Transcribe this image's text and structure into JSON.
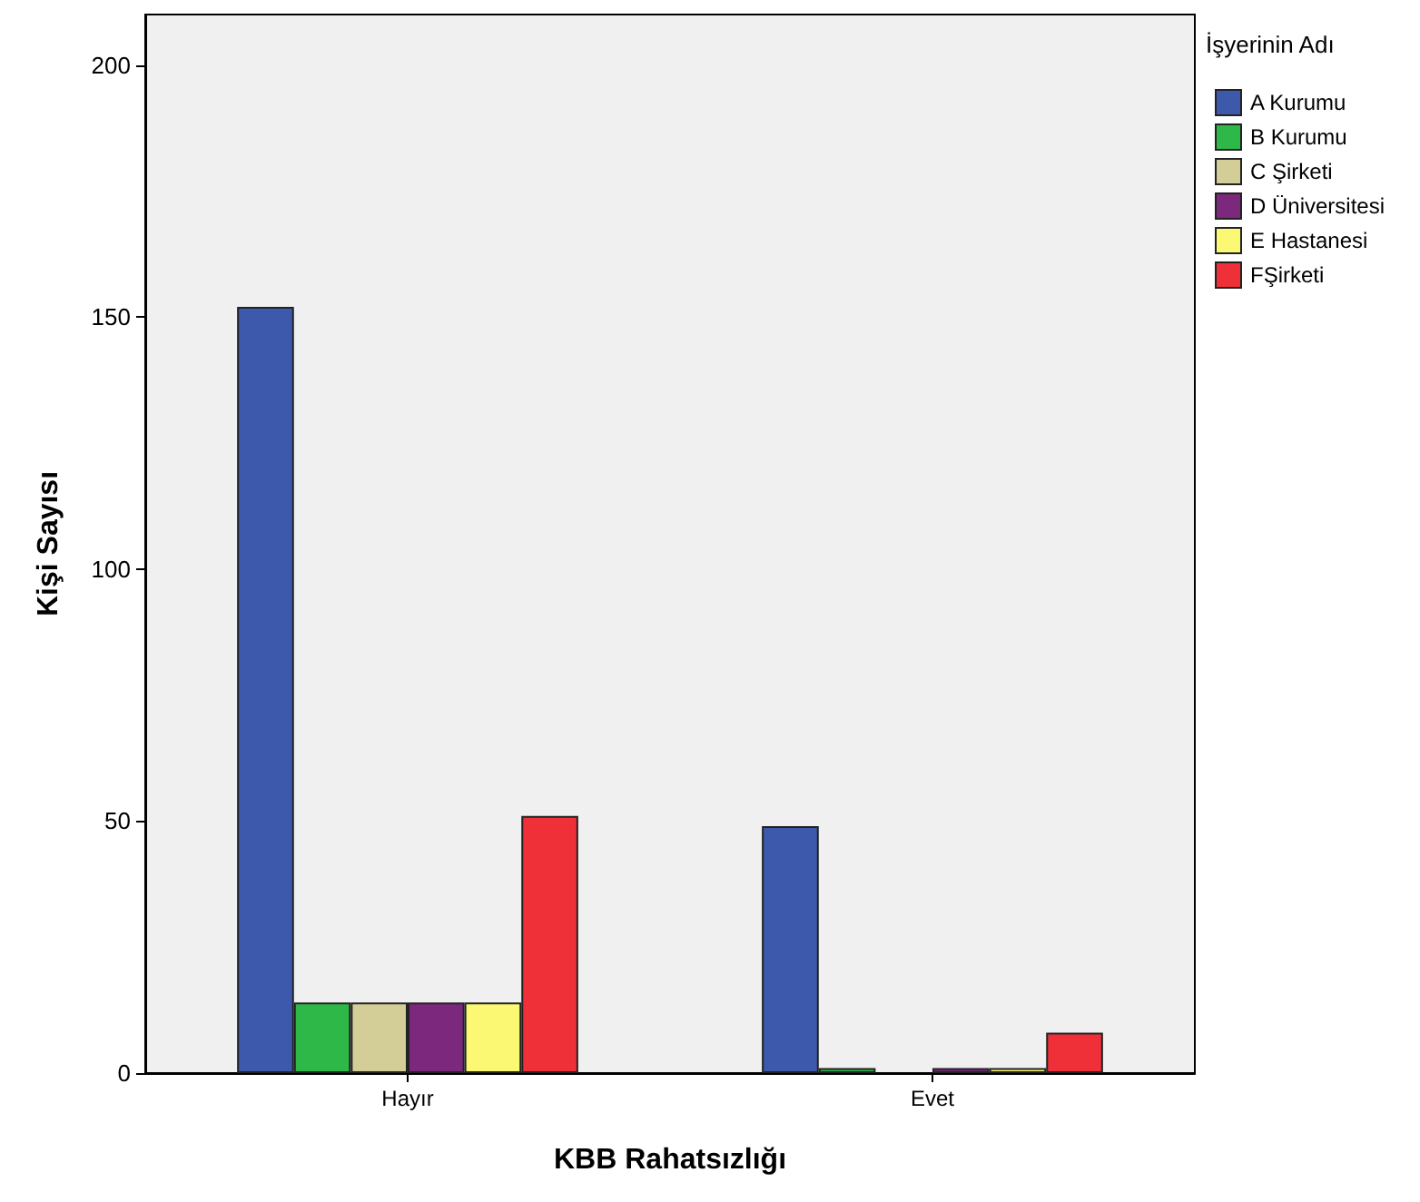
{
  "chart_data": {
    "type": "bar",
    "xlabel": "KBB Rahatsızlığı",
    "ylabel": "Kişi Sayısı",
    "legend_title": "İşyerinin Adı",
    "categories": [
      "Hayır",
      "Evet"
    ],
    "series": [
      {
        "name": "A Kurumu",
        "color": "#3d59ab",
        "values": [
          152,
          49
        ]
      },
      {
        "name": "B Kurumu",
        "color": "#2eb848",
        "values": [
          14,
          1
        ]
      },
      {
        "name": "C Şirketi",
        "color": "#d3ce97",
        "values": [
          14,
          0
        ]
      },
      {
        "name": "D Üniversitesi",
        "color": "#7b287d",
        "values": [
          14,
          1
        ]
      },
      {
        "name": "E Hastanesi",
        "color": "#fbf873",
        "values": [
          14,
          1
        ]
      },
      {
        "name": "FŞirketi",
        "color": "#ef3038",
        "values": [
          51,
          8
        ]
      }
    ],
    "ylim": [
      0,
      210
    ],
    "yticks": [
      0,
      50,
      100,
      150,
      200
    ],
    "grid": false,
    "legend": "right"
  }
}
